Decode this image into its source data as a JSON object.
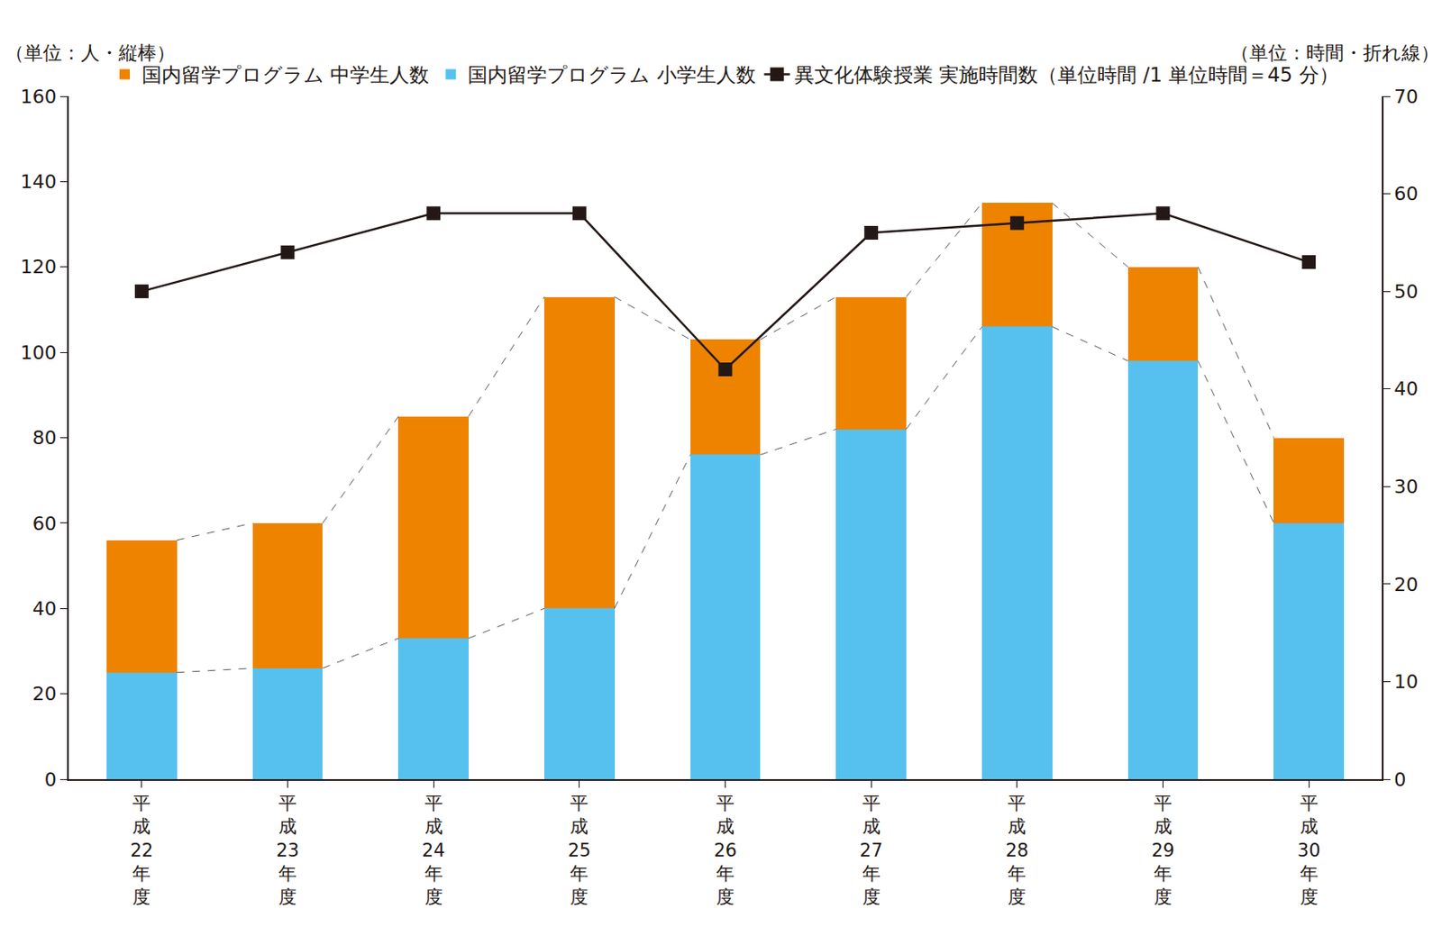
{
  "chart_data": {
    "type": "bar",
    "stacked": true,
    "y_label": "（単位：人・縦棒）",
    "y2_label": "（単位：時間・折れ線）",
    "categories": [
      "平成22年度",
      "平成23年度",
      "平成24年度",
      "平成25年度",
      "平成26年度",
      "平成27年度",
      "平成28年度",
      "平成29年度",
      "平成30年度"
    ],
    "series": [
      {
        "name": "国内留学プログラム 中学生人数",
        "type": "bar",
        "color": "#ee8300",
        "values": [
          31,
          34,
          52,
          73,
          27,
          31,
          29,
          22,
          20
        ]
      },
      {
        "name": "国内留学プログラム 小学生人数",
        "type": "bar",
        "color": "#56c1ef",
        "values": [
          25,
          26,
          33,
          40,
          76,
          82,
          106,
          98,
          60
        ]
      },
      {
        "name": "異文化体験授業 実施時間数（単位時間 /1 単位時間＝45 分）",
        "type": "line",
        "color": "#231815",
        "marker": "square",
        "axis": "y2",
        "values": [
          50,
          54,
          58,
          58,
          42,
          56,
          57,
          58,
          53
        ]
      }
    ],
    "ylim": [
      0,
      160
    ],
    "yticks": [
      0,
      20,
      40,
      60,
      80,
      100,
      120,
      140,
      160
    ],
    "y2lim": [
      0,
      70
    ],
    "y2ticks": [
      0,
      10,
      20,
      30,
      40,
      50,
      60,
      70
    ],
    "grid": false,
    "legend": "top"
  }
}
